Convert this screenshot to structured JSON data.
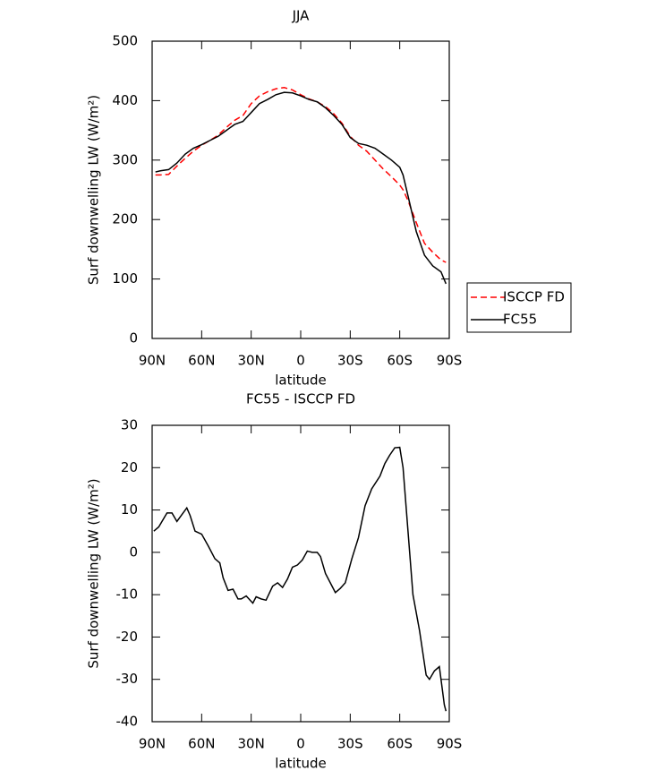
{
  "chart_data": [
    {
      "type": "line",
      "title": "JJA",
      "xlabel": "latitude",
      "ylabel": "Surf downwelling LW (W/m²)",
      "x": [
        88,
        85,
        80,
        75,
        70,
        65,
        60,
        55,
        50,
        45,
        40,
        35,
        30,
        25,
        20,
        15,
        10,
        5,
        0,
        -5,
        -10,
        -15,
        -20,
        -25,
        -30,
        -35,
        -40,
        -45,
        -50,
        -55,
        -60,
        -62,
        -65,
        -70,
        -75,
        -80,
        -85,
        -88
      ],
      "series": [
        {
          "name": "ISCCP FD",
          "color": "#ff0000",
          "linestyle": "dashed",
          "values": [
            275,
            275,
            276,
            290,
            303,
            315,
            325,
            333,
            342,
            355,
            367,
            375,
            395,
            408,
            415,
            420,
            422,
            418,
            410,
            403,
            398,
            390,
            378,
            362,
            340,
            325,
            315,
            300,
            285,
            272,
            258,
            250,
            232,
            195,
            160,
            145,
            132,
            128
          ]
        },
        {
          "name": "FC55",
          "color": "#000000",
          "linestyle": "solid",
          "values": [
            280,
            282,
            284,
            295,
            310,
            320,
            326,
            333,
            340,
            350,
            360,
            365,
            380,
            395,
            402,
            410,
            414,
            413,
            408,
            402,
            398,
            388,
            375,
            360,
            338,
            328,
            325,
            320,
            310,
            300,
            288,
            275,
            240,
            180,
            140,
            122,
            112,
            92
          ]
        }
      ],
      "xlim": [
        90,
        -90
      ],
      "xticks": [
        {
          "value": 90,
          "label": "90N"
        },
        {
          "value": 60,
          "label": "60N"
        },
        {
          "value": 30,
          "label": "30N"
        },
        0,
        {
          "value": -30,
          "label": "30S"
        },
        {
          "value": -60,
          "label": "60S"
        },
        {
          "value": -90,
          "label": "90S"
        }
      ],
      "ylim": [
        0,
        500
      ],
      "yticks": [
        0,
        100,
        200,
        300,
        400,
        500
      ],
      "legend": "right"
    },
    {
      "type": "line",
      "title": "FC55 - ISCCP FD",
      "xlabel": "latitude",
      "ylabel": "Surf downwelling LW (W/m²)",
      "x": [
        89,
        86,
        81,
        78,
        75,
        69,
        67,
        64,
        60,
        56,
        52,
        49,
        47,
        44,
        41,
        38,
        36,
        33,
        29,
        27,
        24,
        21,
        17,
        14,
        11,
        8,
        5,
        2,
        -1,
        -4,
        -7,
        -10,
        -12,
        -15,
        -21,
        -24,
        -27,
        -31,
        -35,
        -39,
        -43,
        -48,
        -51,
        -54,
        -57,
        -60,
        -62,
        -65,
        -68,
        -72,
        -76,
        -78,
        -81,
        -84,
        -87,
        -88
      ],
      "values": [
        5,
        6,
        9.3,
        9.3,
        7.3,
        10.5,
        8.7,
        5,
        4.3,
        1.5,
        -1.5,
        -2.5,
        -6,
        -9,
        -8.7,
        -11,
        -11,
        -10.3,
        -12,
        -10.5,
        -11,
        -11.3,
        -8,
        -7.2,
        -8.3,
        -6.3,
        -3.5,
        -3,
        -1.8,
        0.3,
        0,
        0,
        -1,
        -5,
        -9.5,
        -8.5,
        -7.2,
        -1.5,
        3.5,
        11,
        15,
        18,
        21,
        23,
        24.7,
        24.8,
        20,
        5,
        -10,
        -18.5,
        -29,
        -30,
        -28,
        -27,
        -36,
        -37.5
      ],
      "color": "#000000",
      "xlim": [
        90,
        -90
      ],
      "xticks": [
        {
          "value": 90,
          "label": "90N"
        },
        {
          "value": 60,
          "label": "60N"
        },
        {
          "value": 30,
          "label": "30N"
        },
        0,
        {
          "value": -30,
          "label": "30S"
        },
        {
          "value": -60,
          "label": "60S"
        },
        {
          "value": -90,
          "label": "90S"
        }
      ],
      "ylim": [
        -40,
        30
      ],
      "yticks": [
        -40,
        -30,
        -20,
        -10,
        0,
        10,
        20,
        30
      ]
    }
  ]
}
